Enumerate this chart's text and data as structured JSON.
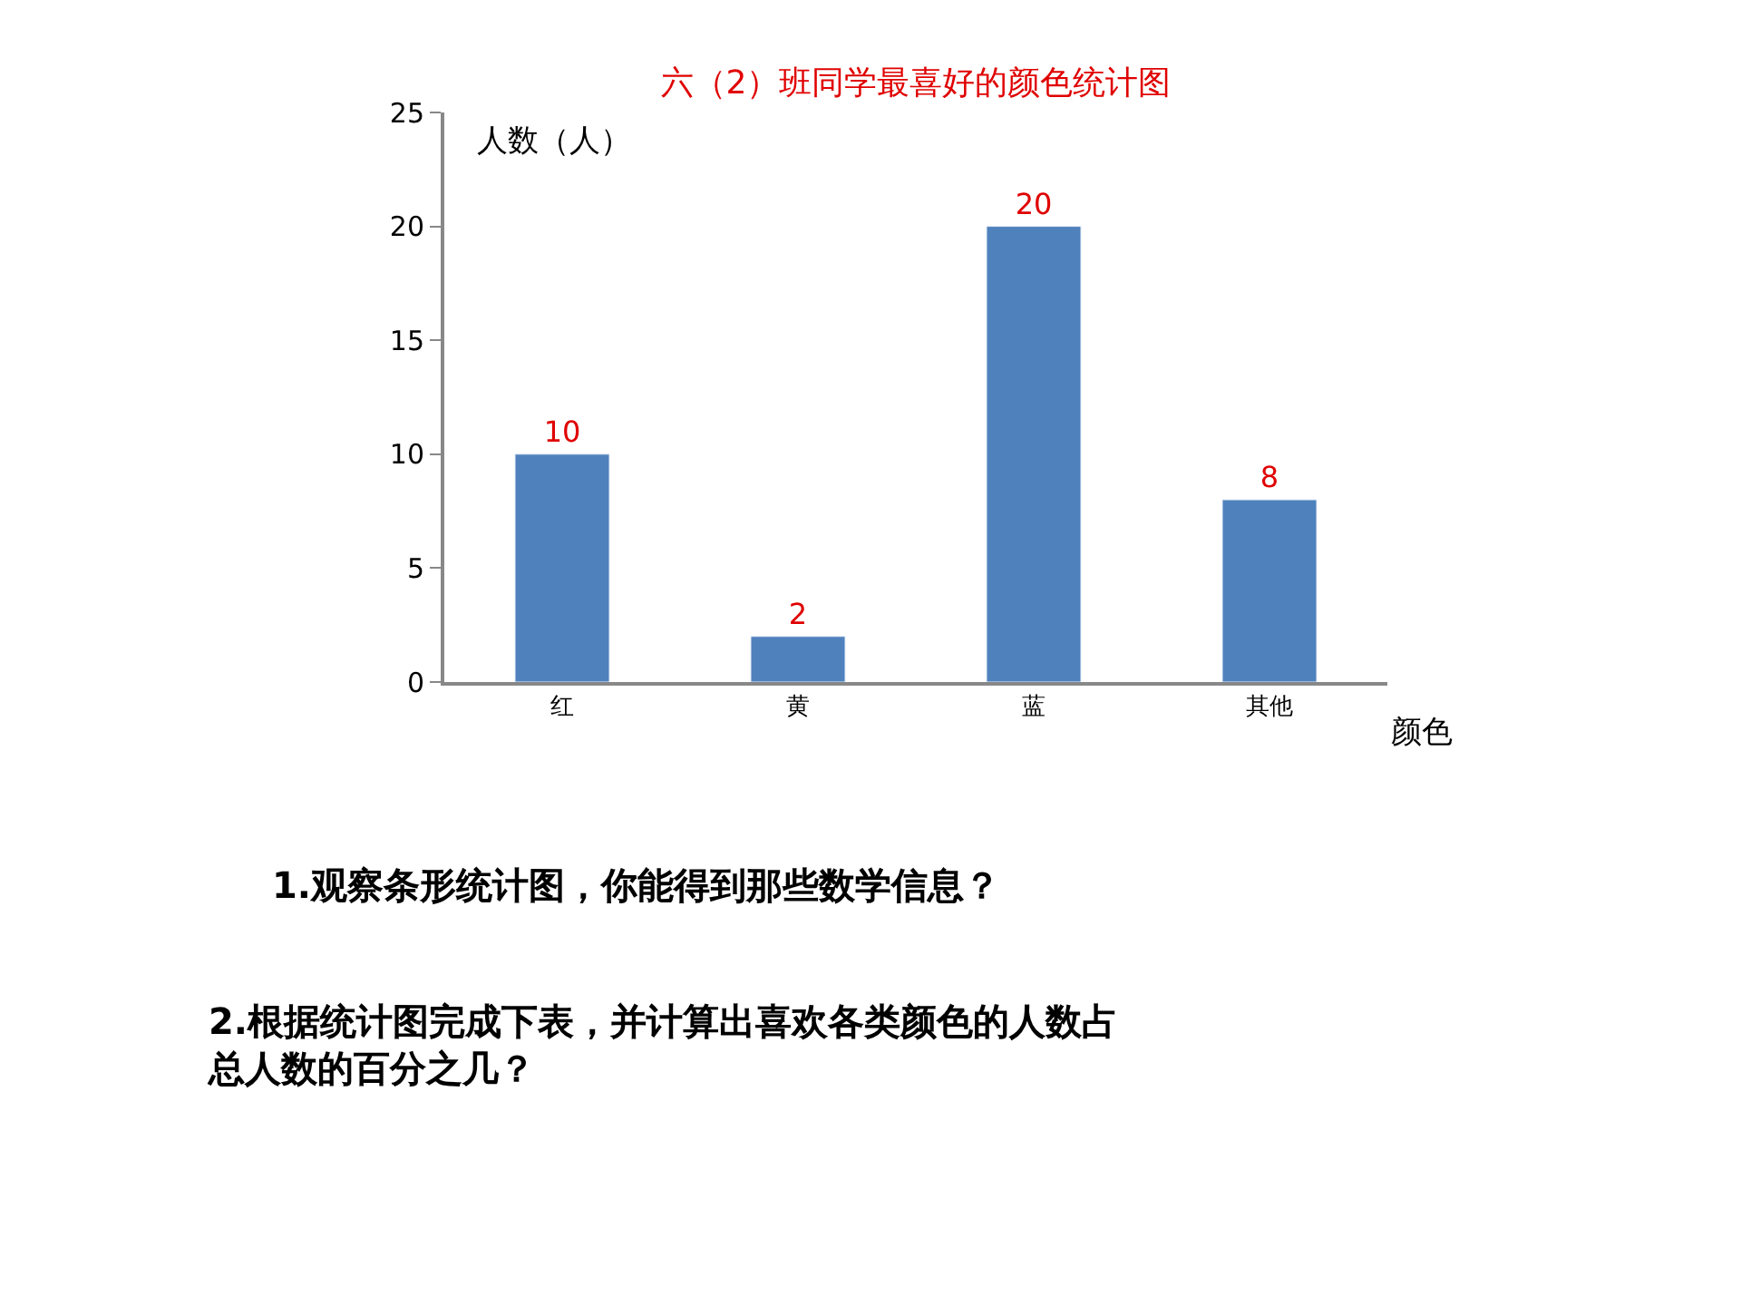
{
  "chart_data": {
    "type": "bar",
    "title": "六（2）班同学最喜好的颜色统计图",
    "xlabel": "颜色",
    "ylabel": "人数（人）",
    "categories": [
      "红",
      "黄",
      "蓝",
      "其他"
    ],
    "values": [
      10,
      2,
      20,
      8
    ],
    "color": "#4f81bd",
    "ylim": [
      0,
      25
    ],
    "yticks": [
      0,
      5,
      10,
      15,
      20,
      25
    ],
    "legend": false,
    "data_labels": true,
    "annotations": [
      "1.观察条形统计图，你能得到那些数学信息？",
      "2.根据统计图完成下表，并计算出喜欢各类颜色的人数占总人数的百分之几？"
    ]
  }
}
